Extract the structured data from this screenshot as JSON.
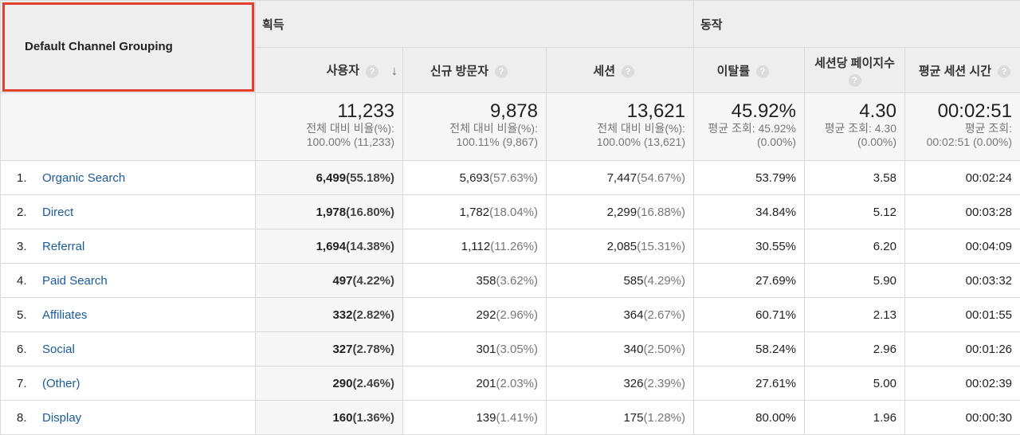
{
  "header": {
    "dimension_label": "Default Channel Grouping",
    "group_acquisition": "획득",
    "group_behavior": "동작",
    "col_users": "사용자",
    "col_new_visitors": "신규 방문자",
    "col_sessions": "세션",
    "col_bounce": "이탈률",
    "col_pages_per_session": "세션당 페이지수",
    "col_avg_session": "평균 세션 시간",
    "help_glyph": "?",
    "sort_glyph": "↓"
  },
  "totals": {
    "users": {
      "value": "11,233",
      "sub1": "전체 대비 비율(%):",
      "sub2": "100.00% (11,233)"
    },
    "new_visitors": {
      "value": "9,878",
      "sub1": "전체 대비 비율(%):",
      "sub2": "100.11% (9,867)"
    },
    "sessions": {
      "value": "13,621",
      "sub1": "전체 대비 비율(%):",
      "sub2": "100.00% (13,621)"
    },
    "bounce": {
      "value": "45.92%",
      "sub1": "평균 조회: 45.92%",
      "sub2": "(0.00%)"
    },
    "pages": {
      "value": "4.30",
      "sub1": "평균 조회: 4.30",
      "sub2": "(0.00%)"
    },
    "avg_session": {
      "value": "00:02:51",
      "sub1": "평균 조회:",
      "sub2": "00:02:51 (0.00%)"
    }
  },
  "rows": [
    {
      "rank": "1.",
      "channel": "Organic Search",
      "users": "6,499",
      "users_pct": "(55.18%)",
      "new": "5,693",
      "new_pct": "(57.63%)",
      "sessions": "7,447",
      "sessions_pct": "(54.67%)",
      "bounce": "53.79%",
      "pages": "3.58",
      "avg": "00:02:24"
    },
    {
      "rank": "2.",
      "channel": "Direct",
      "users": "1,978",
      "users_pct": "(16.80%)",
      "new": "1,782",
      "new_pct": "(18.04%)",
      "sessions": "2,299",
      "sessions_pct": "(16.88%)",
      "bounce": "34.84%",
      "pages": "5.12",
      "avg": "00:03:28"
    },
    {
      "rank": "3.",
      "channel": "Referral",
      "users": "1,694",
      "users_pct": "(14.38%)",
      "new": "1,112",
      "new_pct": "(11.26%)",
      "sessions": "2,085",
      "sessions_pct": "(15.31%)",
      "bounce": "30.55%",
      "pages": "6.20",
      "avg": "00:04:09"
    },
    {
      "rank": "4.",
      "channel": "Paid Search",
      "users": "497",
      "users_pct": "(4.22%)",
      "new": "358",
      "new_pct": "(3.62%)",
      "sessions": "585",
      "sessions_pct": "(4.29%)",
      "bounce": "27.69%",
      "pages": "5.90",
      "avg": "00:03:32"
    },
    {
      "rank": "5.",
      "channel": "Affiliates",
      "users": "332",
      "users_pct": "(2.82%)",
      "new": "292",
      "new_pct": "(2.96%)",
      "sessions": "364",
      "sessions_pct": "(2.67%)",
      "bounce": "60.71%",
      "pages": "2.13",
      "avg": "00:01:55"
    },
    {
      "rank": "6.",
      "channel": "Social",
      "users": "327",
      "users_pct": "(2.78%)",
      "new": "301",
      "new_pct": "(3.05%)",
      "sessions": "340",
      "sessions_pct": "(2.50%)",
      "bounce": "58.24%",
      "pages": "2.96",
      "avg": "00:01:26"
    },
    {
      "rank": "7.",
      "channel": "(Other)",
      "users": "290",
      "users_pct": "(2.46%)",
      "new": "201",
      "new_pct": "(2.03%)",
      "sessions": "326",
      "sessions_pct": "(2.39%)",
      "bounce": "27.61%",
      "pages": "5.00",
      "avg": "00:02:39"
    },
    {
      "rank": "8.",
      "channel": "Display",
      "users": "160",
      "users_pct": "(1.36%)",
      "new": "139",
      "new_pct": "(1.41%)",
      "sessions": "175",
      "sessions_pct": "(1.28%)",
      "bounce": "80.00%",
      "pages": "1.96",
      "avg": "00:00:30"
    }
  ],
  "colors": {
    "header_bg": "#eeeeee",
    "highlight_border": "#e0402c",
    "link": "#1a5a9a"
  }
}
